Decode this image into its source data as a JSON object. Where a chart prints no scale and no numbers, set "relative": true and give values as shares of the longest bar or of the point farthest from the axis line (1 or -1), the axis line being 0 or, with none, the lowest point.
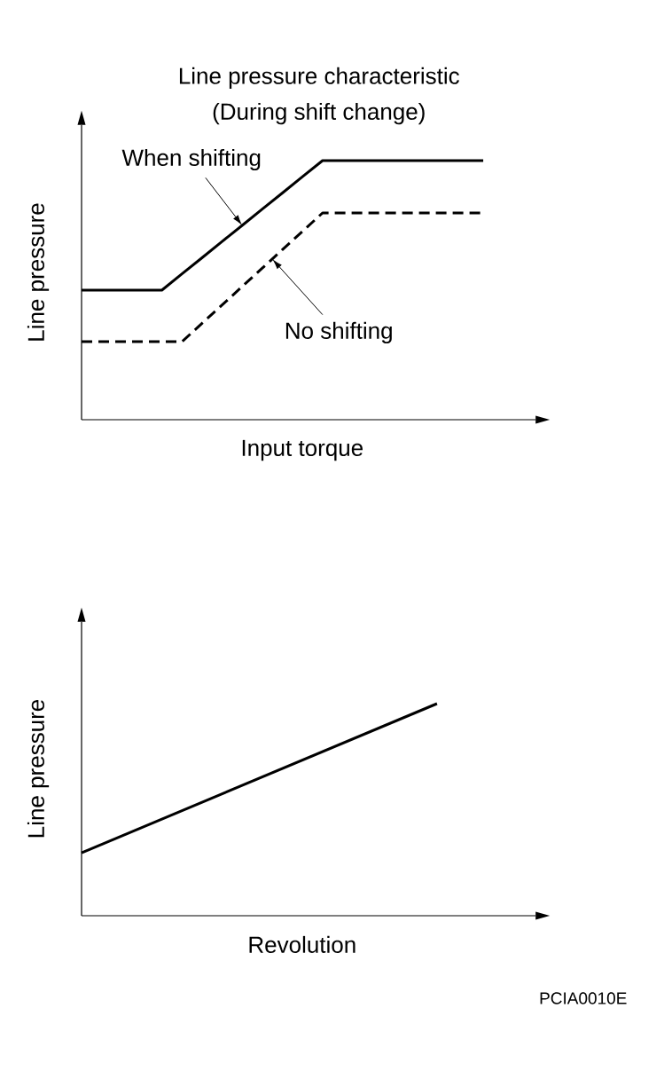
{
  "chart_data": [
    {
      "type": "line",
      "title": "Line pressure characteristic",
      "subtitle": "(During shift change)",
      "xlabel": "Input torque",
      "ylabel": "Line pressure",
      "relative": true,
      "tick_labels": false,
      "categories": [
        null,
        null,
        null,
        null,
        null,
        null,
        null,
        null,
        null,
        null,
        null,
        null,
        null,
        null,
        null,
        null,
        null,
        null,
        null,
        null,
        null
      ],
      "series": [
        {
          "color": "#000000",
          "line_style": "solid",
          "values": [
            0.5,
            0.5,
            0.5,
            0.5,
            0.5,
            0.563,
            0.625,
            0.688,
            0.75,
            0.813,
            0.875,
            0.938,
            1,
            1,
            1,
            1,
            1,
            1,
            1,
            1,
            1
          ]
        },
        {
          "color": "#000000",
          "line_style": "dashed",
          "values": [
            0.301,
            0.301,
            0.301,
            0.301,
            0.301,
            0.301,
            0.372,
            0.443,
            0.514,
            0.585,
            0.656,
            0.727,
            0.798,
            0.798,
            0.798,
            0.798,
            0.798,
            0.798,
            0.798,
            0.798,
            0.798
          ]
        }
      ],
      "annotations": [
        "When shifting",
        "No shifting"
      ]
    },
    {
      "type": "line",
      "xlabel": "Revolution",
      "ylabel": "Line pressure",
      "relative": true,
      "tick_labels": false,
      "categories": [
        null,
        null
      ],
      "series": [
        {
          "color": "#000000",
          "line_style": "solid",
          "values": [
            0.297,
            1
          ]
        }
      ],
      "annotations": [
        "PCIA0010E"
      ]
    }
  ]
}
